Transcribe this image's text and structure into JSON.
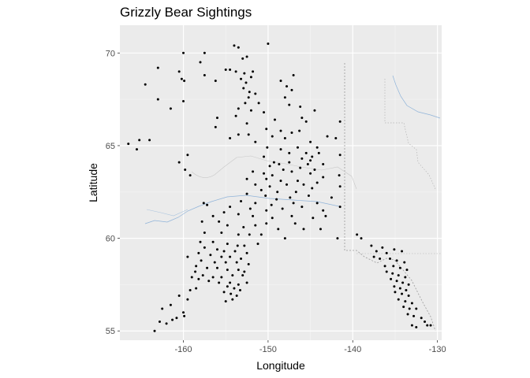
{
  "chart_data": {
    "type": "scatter",
    "title": "Grizzly Bear Sightings",
    "xlabel": "Longitude",
    "ylabel": "Latitude",
    "xlim": [
      -167.5,
      -129.5
    ],
    "ylim": [
      54.5,
      71.5
    ],
    "x_ticks": [
      -160,
      -150,
      -140,
      -130
    ],
    "x_tick_labels": [
      "-160",
      "-150",
      "-140",
      "-130"
    ],
    "y_ticks": [
      55,
      60,
      65,
      70
    ],
    "y_tick_labels": [
      "55",
      "60",
      "65",
      "70"
    ],
    "grid": true,
    "legend": "none",
    "colors": {
      "panel_background": "#ebebeb",
      "grid_major": "#ffffff",
      "grid_minor": "#f5f5f5",
      "points": "#000000",
      "borders": "#b3b3b3",
      "rivers": "#8fb3d9"
    },
    "points": [
      [
        -150,
        70.5
      ],
      [
        -154,
        70.4
      ],
      [
        -153.5,
        70.3
      ],
      [
        -157.5,
        70
      ],
      [
        -160,
        70
      ],
      [
        -152.5,
        69.8
      ],
      [
        -153,
        69.7
      ],
      [
        -158,
        69.5
      ],
      [
        -155,
        69.1
      ],
      [
        -154.5,
        69.1
      ],
      [
        -153.8,
        69
      ],
      [
        -152.8,
        68.9
      ],
      [
        -151.8,
        69
      ],
      [
        -160.5,
        69
      ],
      [
        -163,
        69.2
      ],
      [
        -157.5,
        68.8
      ],
      [
        -153.2,
        68.6
      ],
      [
        -152,
        68.7
      ],
      [
        -147,
        68.8
      ],
      [
        -160.2,
        68.6
      ],
      [
        -159.9,
        68.5
      ],
      [
        -156.2,
        68.5
      ],
      [
        -152.6,
        68.4
      ],
      [
        -148.5,
        68.5
      ],
      [
        -152.9,
        68.1
      ],
      [
        -152.2,
        67.9
      ],
      [
        -147.8,
        68.2
      ],
      [
        -147.2,
        68
      ],
      [
        -164.5,
        68.3
      ],
      [
        -151.5,
        67.8
      ],
      [
        -152.3,
        67.6
      ],
      [
        -148,
        67.6
      ],
      [
        -163,
        67.5
      ],
      [
        -160,
        67.4
      ],
      [
        -152.7,
        67.3
      ],
      [
        -151.1,
        67.3
      ],
      [
        -147.5,
        67.2
      ],
      [
        -146.2,
        67.1
      ],
      [
        -161.5,
        67
      ],
      [
        -153.5,
        67
      ],
      [
        -152,
        66.9
      ],
      [
        -150.5,
        66.8
      ],
      [
        -144.5,
        66.9
      ],
      [
        -156,
        66.5
      ],
      [
        -153.8,
        66.6
      ],
      [
        -149.2,
        66.4
      ],
      [
        -146,
        66.5
      ],
      [
        -145.5,
        66.3
      ],
      [
        -152.5,
        66.2
      ],
      [
        -141.5,
        66.3
      ],
      [
        -156.2,
        66
      ],
      [
        -150.2,
        65.9
      ],
      [
        -148.5,
        65.8
      ],
      [
        -147.2,
        65.7
      ],
      [
        -146.3,
        65.8
      ],
      [
        -153.5,
        65.6
      ],
      [
        -152.3,
        65.6
      ],
      [
        -154.5,
        65.4
      ],
      [
        -149.5,
        65.5
      ],
      [
        -148,
        65.4
      ],
      [
        -143,
        65.5
      ],
      [
        -142,
        65.4
      ],
      [
        -151.5,
        65.2
      ],
      [
        -145,
        65.2
      ],
      [
        -166.5,
        65.1
      ],
      [
        -165.2,
        65.3
      ],
      [
        -164,
        65.3
      ],
      [
        -165.5,
        64.8
      ],
      [
        -150.1,
        64.9
      ],
      [
        -146.5,
        64.9
      ],
      [
        -144.2,
        64.9
      ],
      [
        -148.5,
        64.8
      ],
      [
        -147.5,
        64.6
      ],
      [
        -145.5,
        64.6
      ],
      [
        -144.8,
        64.4
      ],
      [
        -144,
        64.6
      ],
      [
        -141.5,
        64.5
      ],
      [
        -159.5,
        64.5
      ],
      [
        -150.5,
        64.4
      ],
      [
        -146,
        64.3
      ],
      [
        -145,
        64.2
      ],
      [
        -160.5,
        64.1
      ],
      [
        -149.3,
        64.1
      ],
      [
        -148.7,
        64
      ],
      [
        -147.5,
        64.1
      ],
      [
        -145.3,
        64
      ],
      [
        -143.5,
        64
      ],
      [
        -149.8,
        63.9
      ],
      [
        -148.2,
        63.7
      ],
      [
        -146.2,
        63.8
      ],
      [
        -144.5,
        63.7
      ],
      [
        -159.8,
        63.7
      ],
      [
        -151.8,
        63.6
      ],
      [
        -150.5,
        63.5
      ],
      [
        -149.5,
        63.4
      ],
      [
        -147.2,
        63.6
      ],
      [
        -145,
        63.5
      ],
      [
        -143.5,
        63.3
      ],
      [
        -141.6,
        63.4
      ],
      [
        -159.2,
        63.4
      ],
      [
        -152.5,
        63.2
      ],
      [
        -150.2,
        63.2
      ],
      [
        -148.5,
        63.1
      ],
      [
        -146.5,
        63.1
      ],
      [
        -144.2,
        63
      ],
      [
        -151.5,
        62.9
      ],
      [
        -149.8,
        62.8
      ],
      [
        -147.8,
        62.9
      ],
      [
        -145.8,
        62.9
      ],
      [
        -144.8,
        62.7
      ],
      [
        -141.5,
        62.8
      ],
      [
        -150.8,
        62.6
      ],
      [
        -148.9,
        62.5
      ],
      [
        -146.7,
        62.5
      ],
      [
        -152.5,
        62.4
      ],
      [
        -150.3,
        62.3
      ],
      [
        -149,
        62.1
      ],
      [
        -147.4,
        62.2
      ],
      [
        -145.2,
        62.3
      ],
      [
        -142.5,
        62.2
      ],
      [
        -153.2,
        62
      ],
      [
        -151.5,
        61.9
      ],
      [
        -149.6,
        61.8
      ],
      [
        -147,
        61.9
      ],
      [
        -144.2,
        61.9
      ],
      [
        -157.6,
        61.9
      ],
      [
        -157.2,
        61.8
      ],
      [
        -154.5,
        61.7
      ],
      [
        -152.1,
        61.6
      ],
      [
        -150.2,
        61.5
      ],
      [
        -148.3,
        61.6
      ],
      [
        -146,
        61.7
      ],
      [
        -143.5,
        61.5
      ],
      [
        -141.5,
        61.7
      ],
      [
        -155.2,
        61.4
      ],
      [
        -153.5,
        61.3
      ],
      [
        -151.8,
        61.2
      ],
      [
        -149.5,
        61.1
      ],
      [
        -147.2,
        61.2
      ],
      [
        -144.7,
        61.1
      ],
      [
        -143.2,
        61.2
      ],
      [
        -156.5,
        61.2
      ],
      [
        -157.8,
        60.9
      ],
      [
        -155.8,
        60.9
      ],
      [
        -154.8,
        60.7
      ],
      [
        -152.9,
        60.6
      ],
      [
        -151.5,
        60.7
      ],
      [
        -150.2,
        60.8
      ],
      [
        -148.8,
        60.5
      ],
      [
        -146.8,
        60.8
      ],
      [
        -145.8,
        60.5
      ],
      [
        -143.8,
        60.5
      ],
      [
        -157.5,
        60.3
      ],
      [
        -155.5,
        60.3
      ],
      [
        -153.5,
        60.2
      ],
      [
        -152.2,
        60.2
      ],
      [
        -150.8,
        60.2
      ],
      [
        -148,
        60
      ],
      [
        -141.8,
        60
      ],
      [
        -158,
        59.8
      ],
      [
        -156.5,
        59.8
      ],
      [
        -154.8,
        59.7
      ],
      [
        -153.6,
        59.6
      ],
      [
        -152.8,
        59.6
      ],
      [
        -151.2,
        59.7
      ],
      [
        -157.5,
        59.5
      ],
      [
        -156,
        59.4
      ],
      [
        -155.2,
        59.3
      ],
      [
        -153.9,
        59.3
      ],
      [
        -152.5,
        59.2
      ],
      [
        -158.2,
        59.2
      ],
      [
        -156.8,
        59.1
      ],
      [
        -155.5,
        59
      ],
      [
        -154.5,
        59
      ],
      [
        -153.2,
        58.9
      ],
      [
        -159.5,
        59
      ],
      [
        -157.9,
        58.8
      ],
      [
        -156.3,
        58.7
      ],
      [
        -155,
        58.7
      ],
      [
        -153.7,
        58.7
      ],
      [
        -152.3,
        58.6
      ],
      [
        -158.5,
        58.5
      ],
      [
        -157.2,
        58.4
      ],
      [
        -156,
        58.4
      ],
      [
        -154.8,
        58.3
      ],
      [
        -153.5,
        58.3
      ],
      [
        -152.8,
        58.2
      ],
      [
        -158.6,
        58.2
      ],
      [
        -157.7,
        58
      ],
      [
        -156.5,
        57.9
      ],
      [
        -155.5,
        57.9
      ],
      [
        -154.2,
        58
      ],
      [
        -153,
        58
      ],
      [
        -159,
        57.9
      ],
      [
        -158.2,
        57.8
      ],
      [
        -157,
        57.7
      ],
      [
        -155.8,
        57.6
      ],
      [
        -154.5,
        57.6
      ],
      [
        -153.5,
        57.5
      ],
      [
        -152.5,
        57.6
      ],
      [
        -154.8,
        57.4
      ],
      [
        -154,
        57.3
      ],
      [
        -153.3,
        57.2
      ],
      [
        -155.2,
        57.1
      ],
      [
        -154.4,
        57
      ],
      [
        -153.7,
        56.9
      ],
      [
        -159.2,
        57.2
      ],
      [
        -158.5,
        57.3
      ],
      [
        -160.5,
        56.9
      ],
      [
        -159.5,
        56.7
      ],
      [
        -155,
        56.6
      ],
      [
        -154.2,
        56.7
      ],
      [
        -161.5,
        56.4
      ],
      [
        -162.5,
        56.2
      ],
      [
        -160,
        56
      ],
      [
        -160.8,
        55.7
      ],
      [
        -159.9,
        55.8
      ],
      [
        -162.8,
        55.5
      ],
      [
        -162,
        55.4
      ],
      [
        -161.3,
        55.6
      ],
      [
        -163.4,
        55
      ],
      [
        -139.5,
        60.2
      ],
      [
        -139,
        60
      ],
      [
        -137.8,
        59.6
      ],
      [
        -136.5,
        59.5
      ],
      [
        -137.2,
        59.3
      ],
      [
        -136,
        59.2
      ],
      [
        -135.1,
        59.4
      ],
      [
        -134.2,
        59.3
      ],
      [
        -137.5,
        59
      ],
      [
        -136.8,
        58.9
      ],
      [
        -135.6,
        58.9
      ],
      [
        -134.8,
        58.8
      ],
      [
        -133.9,
        58.7
      ],
      [
        -136.2,
        58.5
      ],
      [
        -135.2,
        58.5
      ],
      [
        -134.4,
        58.4
      ],
      [
        -133.6,
        58.3
      ],
      [
        -136,
        58.2
      ],
      [
        -135.3,
        58.1
      ],
      [
        -134.6,
        58
      ],
      [
        -133.8,
        57.9
      ],
      [
        -135.5,
        57.8
      ],
      [
        -134.8,
        57.7
      ],
      [
        -134.1,
        57.6
      ],
      [
        -133.4,
        57.5
      ],
      [
        -135.1,
        57.4
      ],
      [
        -134.4,
        57.3
      ],
      [
        -133.7,
        57.2
      ],
      [
        -135,
        57.1
      ],
      [
        -134.2,
        57
      ],
      [
        -133.4,
        56.9
      ],
      [
        -134.6,
        56.7
      ],
      [
        -133.8,
        56.6
      ],
      [
        -133,
        56.5
      ],
      [
        -134,
        56.3
      ],
      [
        -133.3,
        56.2
      ],
      [
        -132.5,
        56.2
      ],
      [
        -133.5,
        55.9
      ],
      [
        -132.8,
        55.8
      ],
      [
        -131.9,
        55.7
      ],
      [
        -131.5,
        55.5
      ],
      [
        -133,
        55.3
      ],
      [
        -132.5,
        55.2
      ],
      [
        -131.2,
        55.3
      ],
      [
        -130.8,
        55.3
      ]
    ]
  }
}
